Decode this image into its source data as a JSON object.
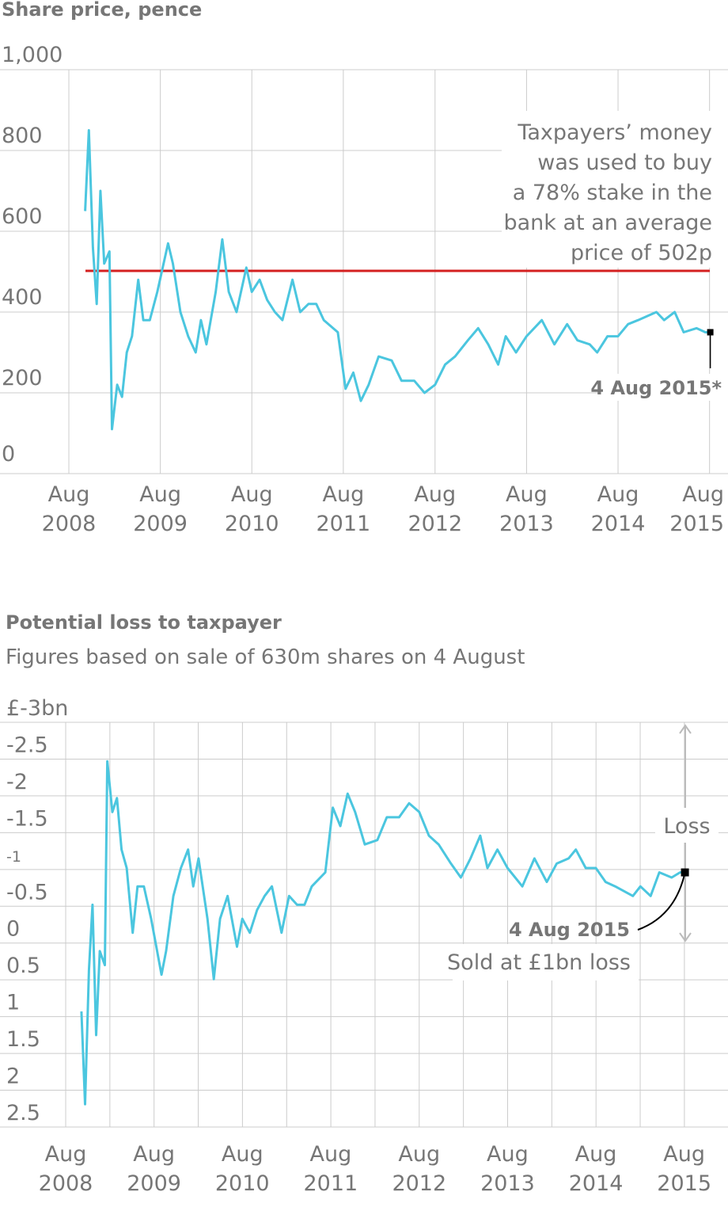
{
  "colors": {
    "line": "#4bc6df",
    "average": "#d42020",
    "grid": "#cccccc",
    "text": "#767676",
    "marker": "#000000"
  },
  "chart_data": [
    {
      "type": "line",
      "title": "Share price, pence",
      "ylim": [
        0,
        1000
      ],
      "yticks": [
        "0",
        "200",
        "400",
        "600",
        "800",
        "1,000"
      ],
      "ytick_values": [
        0,
        200,
        400,
        600,
        800,
        1000
      ],
      "xticks": [
        {
          "date": "2008-08-01",
          "line1": "Aug",
          "line2": "2008"
        },
        {
          "date": "2009-08-01",
          "line1": "Aug",
          "line2": "2009"
        },
        {
          "date": "2010-08-01",
          "line1": "Aug",
          "line2": "2010"
        },
        {
          "date": "2011-08-01",
          "line1": "Aug",
          "line2": "2011"
        },
        {
          "date": "2012-08-01",
          "line1": "Aug",
          "line2": "2012"
        },
        {
          "date": "2013-08-01",
          "line1": "Aug",
          "line2": "2013"
        },
        {
          "date": "2014-08-01",
          "line1": "Aug",
          "line2": "2014"
        },
        {
          "date": "2015-08-01",
          "line1": "Aug",
          "line2": "2015"
        }
      ],
      "grid": true,
      "reference_line": {
        "value": 502
      },
      "annotation_lines": [
        "Taxpayers’ money",
        "was used to buy",
        "a 78% stake in the",
        "bank at an average",
        "price of 502p"
      ],
      "end_label": "4 Aug 2015*",
      "x": [
        "2008-10-05",
        "2008-10-20",
        "2008-11-05",
        "2008-11-20",
        "2008-12-05",
        "2008-12-20",
        "2009-01-10",
        "2009-01-20",
        "2009-02-10",
        "2009-03-01",
        "2009-03-20",
        "2009-04-10",
        "2009-05-05",
        "2009-05-25",
        "2009-06-20",
        "2009-07-20",
        "2009-09-01",
        "2009-09-20",
        "2009-10-20",
        "2009-11-20",
        "2009-12-20",
        "2010-01-10",
        "2010-02-01",
        "2010-03-10",
        "2010-04-05",
        "2010-05-01",
        "2010-06-01",
        "2010-07-10",
        "2010-08-01",
        "2010-09-01",
        "2010-10-01",
        "2010-11-01",
        "2010-12-01",
        "2011-01-10",
        "2011-02-10",
        "2011-03-15",
        "2011-04-15",
        "2011-05-15",
        "2011-07-10",
        "2011-08-10",
        "2011-09-10",
        "2011-10-10",
        "2011-11-10",
        "2011-12-20",
        "2012-02-10",
        "2012-03-20",
        "2012-05-10",
        "2012-06-20",
        "2012-08-01",
        "2012-09-10",
        "2012-10-20",
        "2012-12-10",
        "2013-01-20",
        "2013-03-01",
        "2013-04-10",
        "2013-05-10",
        "2013-06-20",
        "2013-08-01",
        "2013-10-01",
        "2013-11-20",
        "2014-01-10",
        "2014-02-20",
        "2014-04-10",
        "2014-05-10",
        "2014-06-20",
        "2014-08-01",
        "2014-09-10",
        "2014-10-20",
        "2015-01-01",
        "2015-02-01",
        "2015-03-15",
        "2015-04-20",
        "2015-06-10",
        "2015-07-15",
        "2015-08-04"
      ],
      "values": [
        650,
        850,
        560,
        420,
        700,
        520,
        550,
        110,
        220,
        190,
        300,
        340,
        480,
        380,
        380,
        450,
        570,
        520,
        400,
        340,
        300,
        380,
        320,
        450,
        580,
        450,
        400,
        510,
        450,
        480,
        430,
        400,
        380,
        480,
        400,
        420,
        420,
        380,
        350,
        210,
        250,
        180,
        220,
        290,
        280,
        230,
        230,
        200,
        220,
        270,
        290,
        330,
        360,
        320,
        270,
        340,
        300,
        340,
        380,
        320,
        370,
        330,
        320,
        300,
        340,
        340,
        370,
        380,
        400,
        380,
        400,
        350,
        360,
        350,
        350
      ]
    },
    {
      "type": "line",
      "title": "Potential loss to taxpayer",
      "subtitle": "Figures based on sale of 630m shares on 4 August",
      "ylim": [
        -3,
        2.5
      ],
      "y_inverted": false,
      "yticks": [
        "£-3bn",
        "-2.5",
        "-2",
        "-1.5",
        "-1",
        "-0.5",
        "0",
        "0.5",
        "1",
        "1.5",
        "2",
        "2.5"
      ],
      "ytick_values": [
        -3,
        -2.5,
        -2,
        -1.5,
        -1,
        -0.5,
        0,
        0.5,
        1,
        1.5,
        2,
        2.5
      ],
      "xticks": [
        {
          "date": "2008-08-01",
          "line1": "Aug",
          "line2": "2008"
        },
        {
          "date": "2009-08-01",
          "line1": "Aug",
          "line2": "2009"
        },
        {
          "date": "2010-08-01",
          "line1": "Aug",
          "line2": "2010"
        },
        {
          "date": "2011-08-01",
          "line1": "Aug",
          "line2": "2011"
        },
        {
          "date": "2012-08-01",
          "line1": "Aug",
          "line2": "2012"
        },
        {
          "date": "2013-08-01",
          "line1": "Aug",
          "line2": "2013"
        },
        {
          "date": "2014-08-01",
          "line1": "Aug",
          "line2": "2014"
        },
        {
          "date": "2015-08-01",
          "line1": "Aug",
          "line2": "2015"
        }
      ],
      "grid": true,
      "loss_label": "Loss",
      "end_label": "4 Aug 2015",
      "end_note": "Sold at £1bn loss",
      "x": [
        "2008-10-05",
        "2008-10-20",
        "2008-11-05",
        "2008-11-20",
        "2008-12-05",
        "2008-12-20",
        "2009-01-10",
        "2009-01-20",
        "2009-02-10",
        "2009-03-01",
        "2009-03-20",
        "2009-04-10",
        "2009-05-05",
        "2009-05-25",
        "2009-06-20",
        "2009-07-20",
        "2009-09-01",
        "2009-09-20",
        "2009-10-20",
        "2009-11-20",
        "2009-12-20",
        "2010-01-10",
        "2010-02-01",
        "2010-03-10",
        "2010-04-05",
        "2010-05-01",
        "2010-06-01",
        "2010-07-10",
        "2010-08-01",
        "2010-09-01",
        "2010-10-01",
        "2010-11-01",
        "2010-12-01",
        "2011-01-10",
        "2011-02-10",
        "2011-03-15",
        "2011-04-15",
        "2011-05-15",
        "2011-07-10",
        "2011-08-10",
        "2011-09-10",
        "2011-10-10",
        "2011-11-10",
        "2011-12-20",
        "2012-02-10",
        "2012-03-20",
        "2012-05-10",
        "2012-06-20",
        "2012-08-01",
        "2012-09-10",
        "2012-10-20",
        "2012-12-10",
        "2013-01-20",
        "2013-03-01",
        "2013-04-10",
        "2013-05-10",
        "2013-06-20",
        "2013-08-01",
        "2013-10-01",
        "2013-11-20",
        "2014-01-10",
        "2014-02-20",
        "2014-04-10",
        "2014-05-10",
        "2014-06-20",
        "2014-08-01",
        "2014-09-10",
        "2014-10-20",
        "2015-01-01",
        "2015-02-01",
        "2015-03-15",
        "2015-04-20",
        "2015-06-10",
        "2015-07-15",
        "2015-08-04"
      ],
      "values": [
        0.93,
        2.19,
        0.37,
        -0.52,
        1.25,
        0.11,
        0.3,
        -2.47,
        -1.78,
        -1.97,
        -1.27,
        -1.02,
        -0.14,
        -0.77,
        -0.77,
        -0.33,
        0.43,
        0.11,
        -0.64,
        -1.02,
        -1.27,
        -0.77,
        -1.15,
        -0.33,
        0.49,
        -0.33,
        -0.64,
        0.05,
        -0.33,
        -0.14,
        -0.45,
        -0.64,
        -0.77,
        -0.14,
        -0.64,
        -0.52,
        -0.52,
        -0.77,
        -0.96,
        -1.84,
        -1.59,
        -2.03,
        -1.78,
        -1.34,
        -1.4,
        -1.71,
        -1.71,
        -1.9,
        -1.78,
        -1.46,
        -1.34,
        -1.08,
        -0.89,
        -1.15,
        -1.46,
        -1.02,
        -1.27,
        -1.02,
        -0.77,
        -1.15,
        -0.83,
        -1.08,
        -1.15,
        -1.27,
        -1.02,
        -1.02,
        -0.83,
        -0.77,
        -0.64,
        -0.77,
        -0.64,
        -0.96,
        -0.89,
        -0.96,
        -0.96
      ]
    }
  ]
}
